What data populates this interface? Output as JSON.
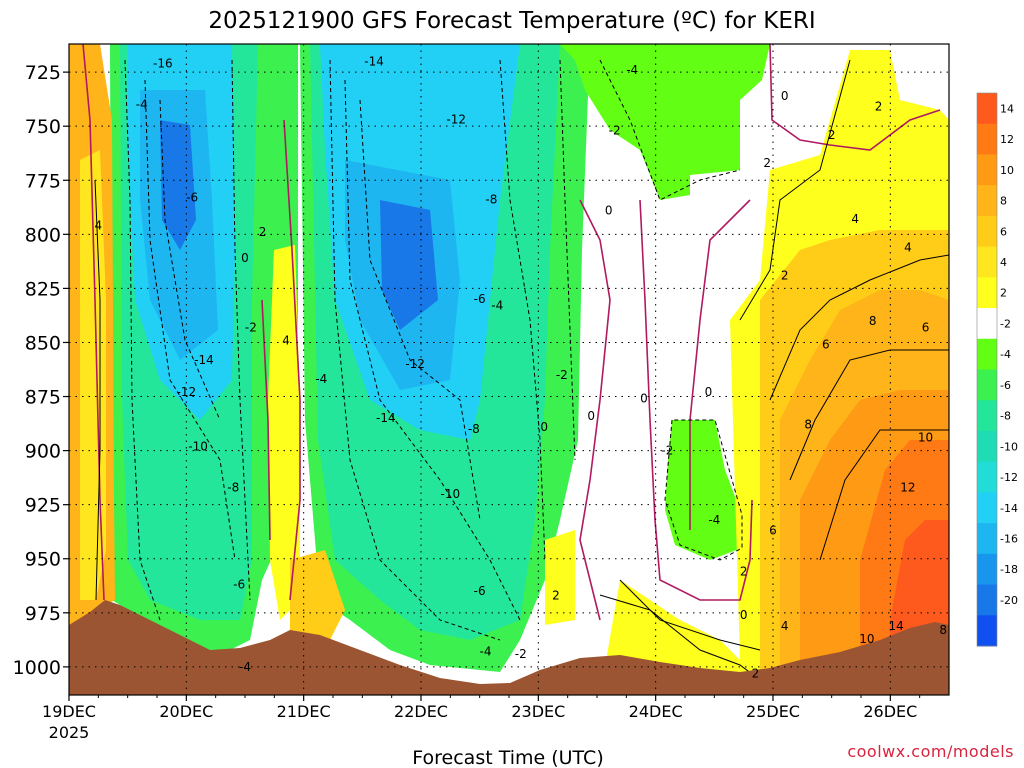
{
  "title": "2025121900 GFS Forecast Temperature (ºC) for KERI",
  "credit": "coolwx.com/models",
  "chart_data": {
    "type": "heatmap",
    "title": "2025121900 GFS Forecast Temperature (ºC) for KERI",
    "xlabel": "Forecast Time (UTC)",
    "ylabel": "",
    "x_tick_labels": [
      "19DEC",
      "20DEC",
      "21DEC",
      "22DEC",
      "23DEC",
      "24DEC",
      "25DEC",
      "26DEC"
    ],
    "x_year_label": "2025",
    "y_tick_labels": [
      "725",
      "750",
      "775",
      "800",
      "825",
      "850",
      "875",
      "900",
      "925",
      "950",
      "975",
      "1000"
    ],
    "y_range": [
      712,
      1013
    ],
    "y_direction": "pressure increasing downward",
    "grid": true,
    "colorbar": {
      "labels": [
        "14",
        "12",
        "10",
        "8",
        "6",
        "4",
        "2",
        "-2",
        "-4",
        "-6",
        "-8",
        "-10",
        "-12",
        "-14",
        "-16",
        "-18",
        "-20"
      ],
      "colors": [
        "#ff5a1e",
        "#ff7a14",
        "#ff9a14",
        "#ffb41a",
        "#ffcd18",
        "#ffe61e",
        "#ffff1e",
        "#ffffff",
        "#62ff14",
        "#3cf050",
        "#24e69a",
        "#20dcb4",
        "#22dcd8",
        "#22d0f6",
        "#1eb6f0",
        "#1896ee",
        "#1878e8",
        "#1050f0"
      ]
    },
    "contour_labels": [
      {
        "t": 0.62,
        "p": 740,
        "v": "-4"
      },
      {
        "t": 0.8,
        "p": 721,
        "v": "-16"
      },
      {
        "t": 1.05,
        "p": 783,
        "v": "-6"
      },
      {
        "t": 0.25,
        "p": 796,
        "v": "4"
      },
      {
        "t": 1.5,
        "p": 811,
        "v": "0"
      },
      {
        "t": 1.65,
        "p": 799,
        "v": "2"
      },
      {
        "t": 1.55,
        "p": 843,
        "v": "-2"
      },
      {
        "t": 1.85,
        "p": 849,
        "v": "4"
      },
      {
        "t": 1.15,
        "p": 858,
        "v": "-14"
      },
      {
        "t": 1.0,
        "p": 873,
        "v": "-12"
      },
      {
        "t": 1.1,
        "p": 898,
        "v": "-10"
      },
      {
        "t": 1.4,
        "p": 917,
        "v": "-8"
      },
      {
        "t": 1.45,
        "p": 962,
        "v": "-6"
      },
      {
        "t": 1.5,
        "p": 1000,
        "v": "-4"
      },
      {
        "t": 2.6,
        "p": 720,
        "v": "-14"
      },
      {
        "t": 2.15,
        "p": 867,
        "v": "-4"
      },
      {
        "t": 3.3,
        "p": 747,
        "v": "-12"
      },
      {
        "t": 3.6,
        "p": 784,
        "v": "-8"
      },
      {
        "t": 3.5,
        "p": 830,
        "v": "-6"
      },
      {
        "t": 3.65,
        "p": 833,
        "v": "-4"
      },
      {
        "t": 2.95,
        "p": 860,
        "v": "-12"
      },
      {
        "t": 2.7,
        "p": 885,
        "v": "-14"
      },
      {
        "t": 3.45,
        "p": 890,
        "v": "-8"
      },
      {
        "t": 3.25,
        "p": 920,
        "v": "-10"
      },
      {
        "t": 3.5,
        "p": 965,
        "v": "-6"
      },
      {
        "t": 3.55,
        "p": 993,
        "v": "-4"
      },
      {
        "t": 3.85,
        "p": 994,
        "v": "-2"
      },
      {
        "t": 4.2,
        "p": 865,
        "v": "-2"
      },
      {
        "t": 4.05,
        "p": 889,
        "v": "0"
      },
      {
        "t": 4.45,
        "p": 884,
        "v": "0"
      },
      {
        "t": 4.15,
        "p": 967,
        "v": "2"
      },
      {
        "t": 4.8,
        "p": 724,
        "v": "-4"
      },
      {
        "t": 4.65,
        "p": 752,
        "v": "-2"
      },
      {
        "t": 4.6,
        "p": 789,
        "v": "0"
      },
      {
        "t": 4.9,
        "p": 876,
        "v": "0"
      },
      {
        "t": 5.45,
        "p": 873,
        "v": "0"
      },
      {
        "t": 5.1,
        "p": 900,
        "v": "-2"
      },
      {
        "t": 5.5,
        "p": 932,
        "v": "-4"
      },
      {
        "t": 5.75,
        "p": 956,
        "v": "2"
      },
      {
        "t": 5.75,
        "p": 976,
        "v": "0"
      },
      {
        "t": 5.85,
        "p": 1003,
        "v": "2"
      },
      {
        "t": 5.95,
        "p": 767,
        "v": "2"
      },
      {
        "t": 6.1,
        "p": 736,
        "v": "0"
      },
      {
        "t": 6.5,
        "p": 754,
        "v": "2"
      },
      {
        "t": 6.9,
        "p": 741,
        "v": "2"
      },
      {
        "t": 6.7,
        "p": 793,
        "v": "4"
      },
      {
        "t": 6.1,
        "p": 819,
        "v": "2"
      },
      {
        "t": 7.15,
        "p": 806,
        "v": "4"
      },
      {
        "t": 6.45,
        "p": 851,
        "v": "6"
      },
      {
        "t": 6.85,
        "p": 840,
        "v": "8"
      },
      {
        "t": 7.3,
        "p": 843,
        "v": "6"
      },
      {
        "t": 6.3,
        "p": 888,
        "v": "8"
      },
      {
        "t": 7.3,
        "p": 894,
        "v": "10"
      },
      {
        "t": 7.15,
        "p": 917,
        "v": "12"
      },
      {
        "t": 6.0,
        "p": 937,
        "v": "6"
      },
      {
        "t": 6.1,
        "p": 981,
        "v": "4"
      },
      {
        "t": 6.8,
        "p": 987,
        "v": "10"
      },
      {
        "t": 7.05,
        "p": 981,
        "v": "14"
      },
      {
        "t": 7.45,
        "p": 983,
        "v": "8"
      }
    ]
  }
}
